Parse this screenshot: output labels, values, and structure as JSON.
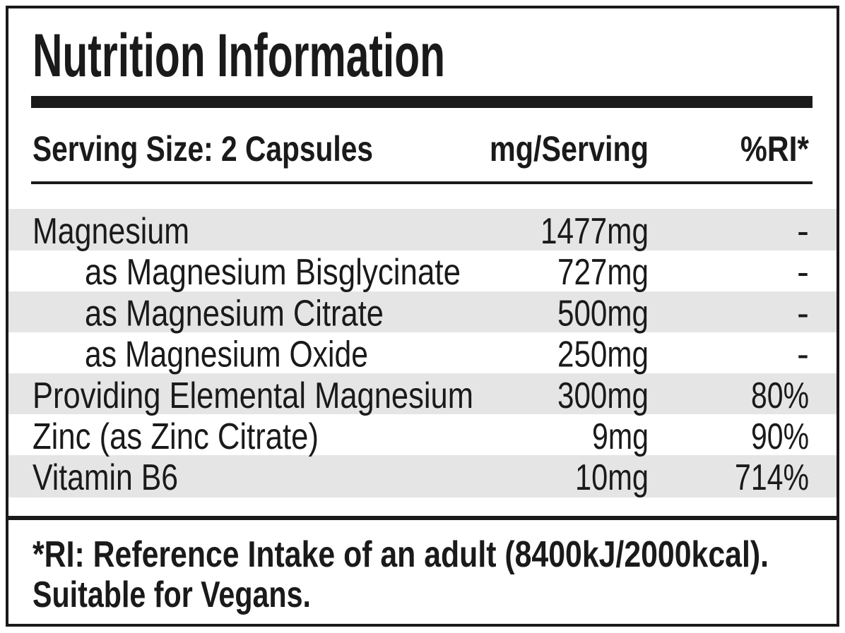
{
  "title": "Nutrition Information",
  "header": {
    "serving": "Serving Size: 2 Capsules",
    "amount": "mg/Serving",
    "ri": "%RI*"
  },
  "rows": [
    {
      "name": "Magnesium",
      "amount": "1477mg",
      "ri": "-"
    },
    {
      "name": "as Magnesium Bisglycinate",
      "amount": "727mg",
      "ri": "-"
    },
    {
      "name": "as Magnesium Citrate",
      "amount": "500mg",
      "ri": "-"
    },
    {
      "name": "as Magnesium Oxide",
      "amount": "250mg",
      "ri": "-"
    },
    {
      "name": "Providing Elemental Magnesium",
      "amount": "300mg",
      "ri": "80%"
    },
    {
      "name": "Zinc (as Zinc Citrate)",
      "amount": "9mg",
      "ri": "90%"
    },
    {
      "name": "Vitamin B6",
      "amount": "10mg",
      "ri": "714%"
    }
  ],
  "footer": [
    "*RI: Reference Intake of an adult (8400kJ/2000kcal).",
    "Suitable for Vegans."
  ]
}
